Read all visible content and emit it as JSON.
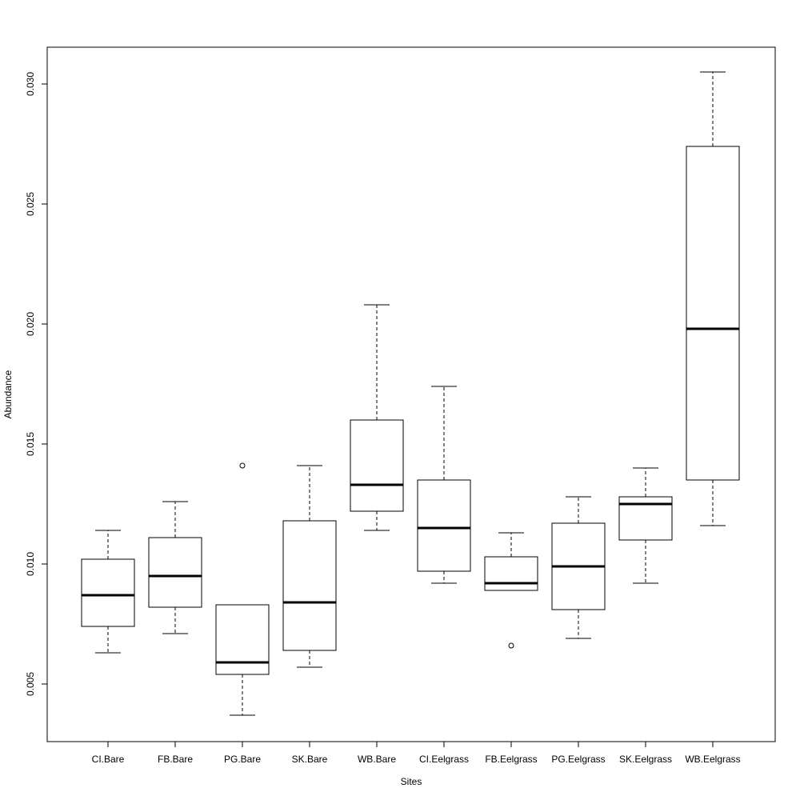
{
  "chart_data": {
    "type": "boxplot",
    "title": "",
    "xlabel": "Sites",
    "ylabel": "Abundance",
    "ylim": [
      0.0025,
      0.0315
    ],
    "yticks": [
      0.005,
      0.01,
      0.015,
      0.02,
      0.025,
      0.03
    ],
    "ytick_labels": [
      "0.005",
      "0.010",
      "0.015",
      "0.020",
      "0.025",
      "0.030"
    ],
    "grid": false,
    "legend": "none",
    "box_fill": "#ffffff",
    "line_color": "#000000",
    "categories": [
      "CI.Bare",
      "FB.Bare",
      "PG.Bare",
      "SK.Bare",
      "WB.Bare",
      "CI.Eelgrass",
      "FB.Eelgrass",
      "PG.Eelgrass",
      "SK.Eelgrass",
      "WB.Eelgrass"
    ],
    "boxes": [
      {
        "whisker_low": 0.0063,
        "q1": 0.0074,
        "median": 0.0087,
        "q3": 0.0102,
        "whisker_high": 0.0114,
        "outliers": []
      },
      {
        "whisker_low": 0.0071,
        "q1": 0.0082,
        "median": 0.0095,
        "q3": 0.0111,
        "whisker_high": 0.0126,
        "outliers": []
      },
      {
        "whisker_low": 0.0037,
        "q1": 0.0054,
        "median": 0.0059,
        "q3": 0.0083,
        "whisker_high": 0.0083,
        "outliers": [
          0.0141
        ]
      },
      {
        "whisker_low": 0.0057,
        "q1": 0.0064,
        "median": 0.0084,
        "q3": 0.0118,
        "whisker_high": 0.0141,
        "outliers": []
      },
      {
        "whisker_low": 0.0114,
        "q1": 0.0122,
        "median": 0.0133,
        "q3": 0.016,
        "whisker_high": 0.0208,
        "outliers": []
      },
      {
        "whisker_low": 0.0092,
        "q1": 0.0097,
        "median": 0.0115,
        "q3": 0.0135,
        "whisker_high": 0.0174,
        "outliers": []
      },
      {
        "whisker_low": 0.0089,
        "q1": 0.0089,
        "median": 0.0092,
        "q3": 0.0103,
        "whisker_high": 0.0113,
        "outliers": [
          0.0066
        ]
      },
      {
        "whisker_low": 0.0069,
        "q1": 0.0081,
        "median": 0.0099,
        "q3": 0.0117,
        "whisker_high": 0.0128,
        "outliers": []
      },
      {
        "whisker_low": 0.0092,
        "q1": 0.011,
        "median": 0.0125,
        "q3": 0.0128,
        "whisker_high": 0.014,
        "outliers": []
      },
      {
        "whisker_low": 0.0116,
        "q1": 0.0135,
        "median": 0.0198,
        "q3": 0.0274,
        "whisker_high": 0.0305,
        "outliers": []
      }
    ]
  }
}
